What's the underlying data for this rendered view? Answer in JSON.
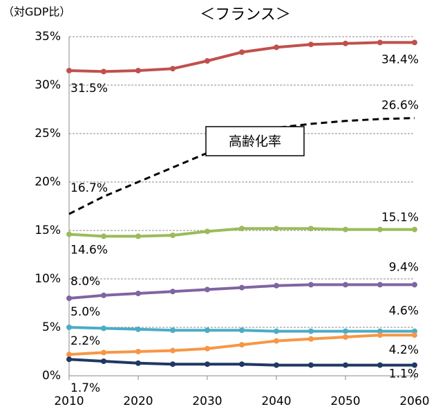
{
  "chart_data": {
    "type": "line",
    "title": "＜フランス＞",
    "y_label": "（対GDP比）",
    "annotation": "高齢化率",
    "x": [
      2010,
      2015,
      2020,
      2025,
      2030,
      2035,
      2040,
      2045,
      2050,
      2055,
      2060
    ],
    "xlim": [
      2010,
      2060
    ],
    "xticks": [
      2010,
      2020,
      2030,
      2040,
      2050,
      2060
    ],
    "ylim": [
      0,
      35
    ],
    "yticks": [
      {
        "value": 0,
        "label": "0%"
      },
      {
        "value": 5,
        "label": "5%"
      },
      {
        "value": 10,
        "label": "10%"
      },
      {
        "value": 15,
        "label": "15%"
      },
      {
        "value": 20,
        "label": "20%"
      },
      {
        "value": 25,
        "label": "25%"
      },
      {
        "value": 30,
        "label": "30%"
      },
      {
        "value": 35,
        "label": "35%"
      }
    ],
    "grid": true,
    "series": [
      {
        "color": "#c0504d",
        "values": [
          31.5,
          31.4,
          31.5,
          31.7,
          32.5,
          33.4,
          33.9,
          34.2,
          34.3,
          34.4,
          34.4
        ],
        "value_labels": [
          "31.5%",
          null,
          null,
          null,
          null,
          null,
          null,
          null,
          null,
          null,
          "34.4%"
        ]
      },
      {
        "color": "#000000",
        "dashed": true,
        "values": [
          16.7,
          18.5,
          20.0,
          21.5,
          23.0,
          24.4,
          25.6,
          26.0,
          26.3,
          26.5,
          26.6
        ],
        "value_labels": [
          "16.7%",
          null,
          null,
          null,
          null,
          null,
          null,
          null,
          null,
          null,
          "26.6%"
        ]
      },
      {
        "color": "#9bbb59",
        "values": [
          14.6,
          14.4,
          14.4,
          14.5,
          14.9,
          15.2,
          15.2,
          15.2,
          15.1,
          15.1,
          15.1
        ],
        "value_labels": [
          "14.6%",
          null,
          null,
          null,
          null,
          null,
          null,
          null,
          null,
          null,
          "15.1%"
        ]
      },
      {
        "color": "#8064a2",
        "values": [
          8.0,
          8.3,
          8.5,
          8.7,
          8.9,
          9.1,
          9.3,
          9.4,
          9.4,
          9.4,
          9.4
        ],
        "value_labels": [
          "8.0%",
          null,
          null,
          null,
          null,
          null,
          null,
          null,
          null,
          null,
          "9.4%"
        ]
      },
      {
        "color": "#4bacc6",
        "values": [
          5.0,
          4.9,
          4.8,
          4.7,
          4.7,
          4.7,
          4.6,
          4.6,
          4.6,
          4.6,
          4.6
        ],
        "value_labels": [
          "5.0%",
          null,
          null,
          null,
          null,
          null,
          null,
          null,
          null,
          null,
          "4.6%"
        ]
      },
      {
        "color": "#f79646",
        "values": [
          2.2,
          2.4,
          2.5,
          2.6,
          2.8,
          3.2,
          3.6,
          3.8,
          4.0,
          4.2,
          4.2
        ],
        "value_labels": [
          "2.2%",
          null,
          null,
          null,
          null,
          null,
          null,
          null,
          null,
          null,
          "4.2%"
        ]
      },
      {
        "color": "#1f3864",
        "values": [
          1.7,
          1.5,
          1.3,
          1.2,
          1.2,
          1.2,
          1.1,
          1.1,
          1.1,
          1.1,
          1.1
        ],
        "value_labels": [
          "1.7%",
          null,
          null,
          null,
          null,
          null,
          null,
          null,
          null,
          null,
          "1.1%"
        ]
      }
    ]
  }
}
